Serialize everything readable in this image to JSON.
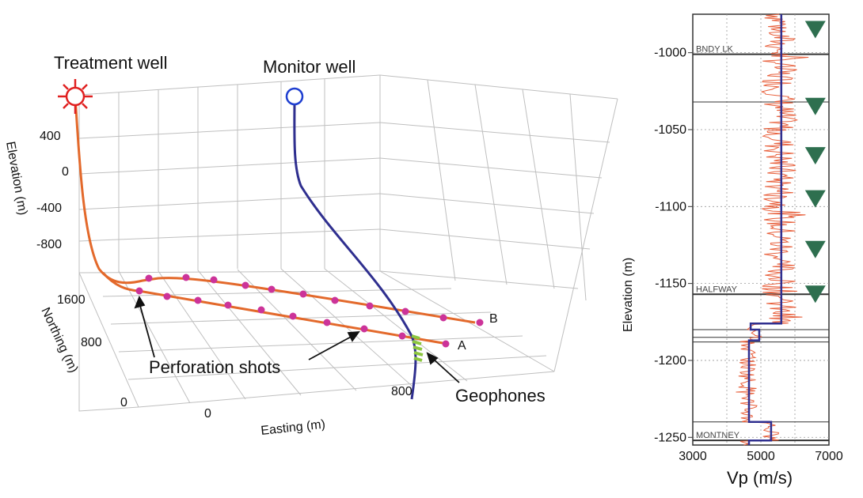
{
  "left_panel": {
    "labels": {
      "treatment_well": "Treatment well",
      "monitor_well": "Monitor well",
      "perforation_shots": "Perforation shots",
      "geophones": "Geophones",
      "line_a": "A",
      "line_b": "B"
    },
    "axes": {
      "elevation_label": "Elevation (m)",
      "northing_label": "Northing (m)",
      "easting_label": "Easting (m)",
      "elevation_ticks": [
        "400",
        "0",
        "-400",
        "-800"
      ],
      "northing_ticks": [
        "1600",
        "800",
        "0"
      ],
      "easting_ticks": [
        "0",
        "800"
      ]
    },
    "colors": {
      "treatment_well": "#e3692b",
      "monitor_well": "#2f2f8f",
      "perforation": "#cc3399",
      "geophones": "#8cc63f",
      "grid": "#bfbfbf"
    }
  },
  "right_panel": {
    "chart_data": {
      "type": "line",
      "xlabel": "Vp (m/s)",
      "ylabel": "Elevation (m)",
      "xlim": [
        3000,
        7000
      ],
      "ylim": [
        -1255,
        -975
      ],
      "x_ticks": [
        "3000",
        "5000",
        "7000"
      ],
      "y_ticks": [
        "-1000",
        "-1050",
        "-1100",
        "-1150",
        "-1200",
        "-1250"
      ],
      "formations": [
        {
          "name": "BNDY LK",
          "elevation": -1001
        },
        {
          "name": "HALFWAY",
          "elevation": -1157
        },
        {
          "name": "MONTNEY",
          "elevation": -1252
        }
      ],
      "horizon_lines": [
        -1001,
        -1032,
        -1157,
        -1180,
        -1185,
        -1188,
        -1240,
        -1252,
        -1255
      ],
      "blocked_vp": {
        "color": "#2f2f8f",
        "points": [
          [
            5600,
            -975
          ],
          [
            5600,
            -1176
          ],
          [
            4700,
            -1176
          ],
          [
            4700,
            -1180
          ],
          [
            4950,
            -1180
          ],
          [
            4950,
            -1187
          ],
          [
            4650,
            -1187
          ],
          [
            4650,
            -1240
          ],
          [
            5300,
            -1240
          ],
          [
            5300,
            -1252
          ],
          [
            4650,
            -1252
          ],
          [
            4650,
            -1262
          ]
        ]
      },
      "raw_vp": {
        "color": "#e8603c"
      },
      "geophone_markers": {
        "vp": 6600,
        "elevations": [
          -985,
          -1035,
          -1067,
          -1095,
          -1128,
          -1157
        ],
        "color": "#2e6f4f"
      }
    }
  }
}
